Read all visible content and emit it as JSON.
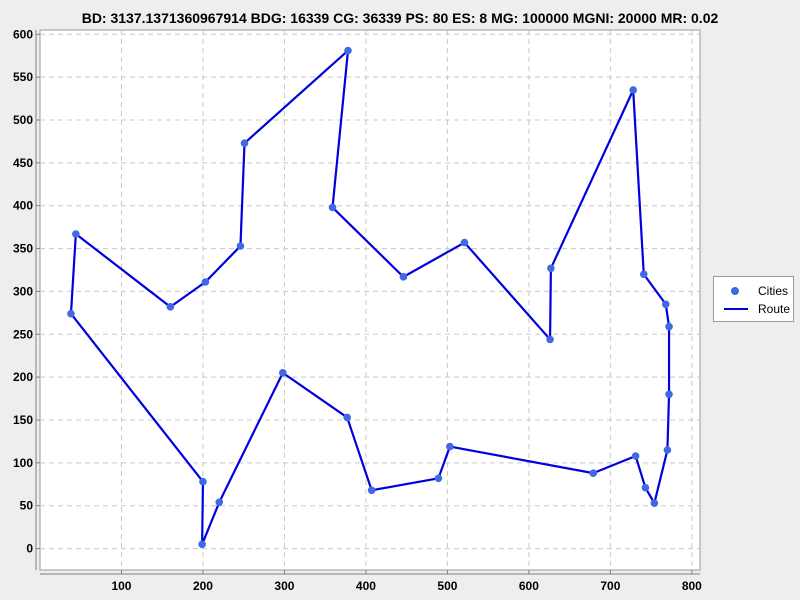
{
  "header": {
    "stats_text": "BD: 3137.1371360967914   BDG: 16339   CG: 36339   PS: 80   ES: 8   MG: 100000   MGNI: 20000   MR: 0.02"
  },
  "chart_data": {
    "type": "scatter",
    "title": "",
    "xlabel": "",
    "ylabel": "",
    "xlim": [
      0,
      810
    ],
    "ylim": [
      -25,
      605
    ],
    "x_ticks": [
      100,
      200,
      300,
      400,
      500,
      600,
      700,
      800
    ],
    "y_ticks": [
      0,
      50,
      100,
      150,
      200,
      250,
      300,
      350,
      400,
      450,
      500,
      550,
      600
    ],
    "grid": true,
    "legend_placement": "right",
    "series": [
      {
        "name": "Cities",
        "style": "points",
        "color": "#4169e1",
        "points": [
          [
            38,
            274
          ],
          [
            44,
            367
          ],
          [
            160,
            282
          ],
          [
            203,
            311
          ],
          [
            246,
            353
          ],
          [
            251,
            473
          ],
          [
            378,
            581
          ],
          [
            359,
            398
          ],
          [
            446,
            317
          ],
          [
            521,
            357
          ],
          [
            626,
            244
          ],
          [
            627,
            327
          ],
          [
            728,
            535
          ],
          [
            741,
            320
          ],
          [
            768,
            285
          ],
          [
            772,
            259
          ],
          [
            772,
            180
          ],
          [
            770,
            115
          ],
          [
            754,
            53
          ],
          [
            743,
            71
          ],
          [
            731,
            108
          ],
          [
            679,
            88
          ],
          [
            503,
            119
          ],
          [
            489,
            82
          ],
          [
            407,
            68
          ],
          [
            377,
            153
          ],
          [
            298,
            205
          ],
          [
            220,
            54
          ],
          [
            199,
            5
          ],
          [
            200,
            78
          ]
        ]
      },
      {
        "name": "Route",
        "style": "line",
        "color": "#0000e0",
        "closed": true,
        "points": [
          [
            38,
            274
          ],
          [
            44,
            367
          ],
          [
            160,
            282
          ],
          [
            203,
            311
          ],
          [
            246,
            353
          ],
          [
            251,
            473
          ],
          [
            378,
            581
          ],
          [
            359,
            398
          ],
          [
            446,
            317
          ],
          [
            521,
            357
          ],
          [
            626,
            244
          ],
          [
            627,
            327
          ],
          [
            728,
            535
          ],
          [
            741,
            320
          ],
          [
            768,
            285
          ],
          [
            772,
            259
          ],
          [
            772,
            180
          ],
          [
            770,
            115
          ],
          [
            754,
            53
          ],
          [
            743,
            71
          ],
          [
            731,
            108
          ],
          [
            679,
            88
          ],
          [
            503,
            119
          ],
          [
            489,
            82
          ],
          [
            407,
            68
          ],
          [
            377,
            153
          ],
          [
            298,
            205
          ],
          [
            220,
            54
          ],
          [
            199,
            5
          ],
          [
            200,
            78
          ]
        ]
      }
    ]
  },
  "legend": {
    "items": [
      {
        "label": "Cities",
        "kind": "marker"
      },
      {
        "label": "Route",
        "kind": "line"
      }
    ]
  }
}
